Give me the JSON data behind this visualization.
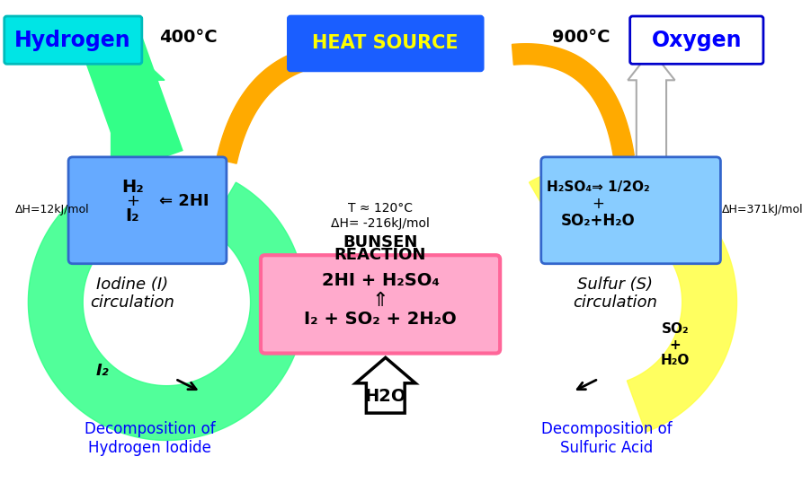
{
  "bg_color": "#ffffff",
  "title": "",
  "hydrogen_label": "Hydrogen",
  "oxygen_label": "Oxygen",
  "heat_source_label": "HEAT SOURCE",
  "temp_left": "400°C",
  "temp_right": "900°C",
  "left_box_lines": [
    "H₂",
    "+",
    "I₂",
    "⇐ 2HI"
  ],
  "right_box_lines": [
    "H₂SO₄⇒ 1/2O₂",
    "+",
    "SO₂+H₂O"
  ],
  "bunsen_title": "BUNSEN\nREACTION",
  "bunsen_temp": "T ≈ 120°C\nΔH= -216kJ/mol",
  "center_box_line1": "2HI + H₂SO₄",
  "center_box_line2": "⇑",
  "center_box_line3": "I₂ + SO₂ + 2H₂O",
  "h2o_label": "H2O",
  "iodine_label": "Iodine (I)\ncirculation",
  "sulfur_label": "Sulfur (S)\ncirculation",
  "decomp_left": "Decomposition of\nHydrogen Iodide",
  "decomp_right": "Decomposition of\nSulfuric Acid",
  "dH_left": "ΔH=12kJ/mol",
  "dH_right": "ΔH=371kJ/mol",
  "i2_label": "I₂",
  "so2_h2o_label": "SO₂\n+\nH₂O",
  "hydrogen_bg": "#00e5e5",
  "oxygen_bg": "#ffffff",
  "heat_source_bg": "#1a5eff",
  "heat_source_text": "#ffff00",
  "left_box_bg": "#66aaff",
  "right_box_bg": "#88ccff",
  "center_box_bg": "#ffaacc",
  "center_box_border": "#ff6699",
  "green_arrow_color": "#33ff88",
  "yellow_arrow_color": "#ffff44",
  "orange_arrow_color": "#ffaa00",
  "white_arrow_color": "#ffffff",
  "blue_text_color": "#0000cc",
  "black_text_color": "#000000"
}
